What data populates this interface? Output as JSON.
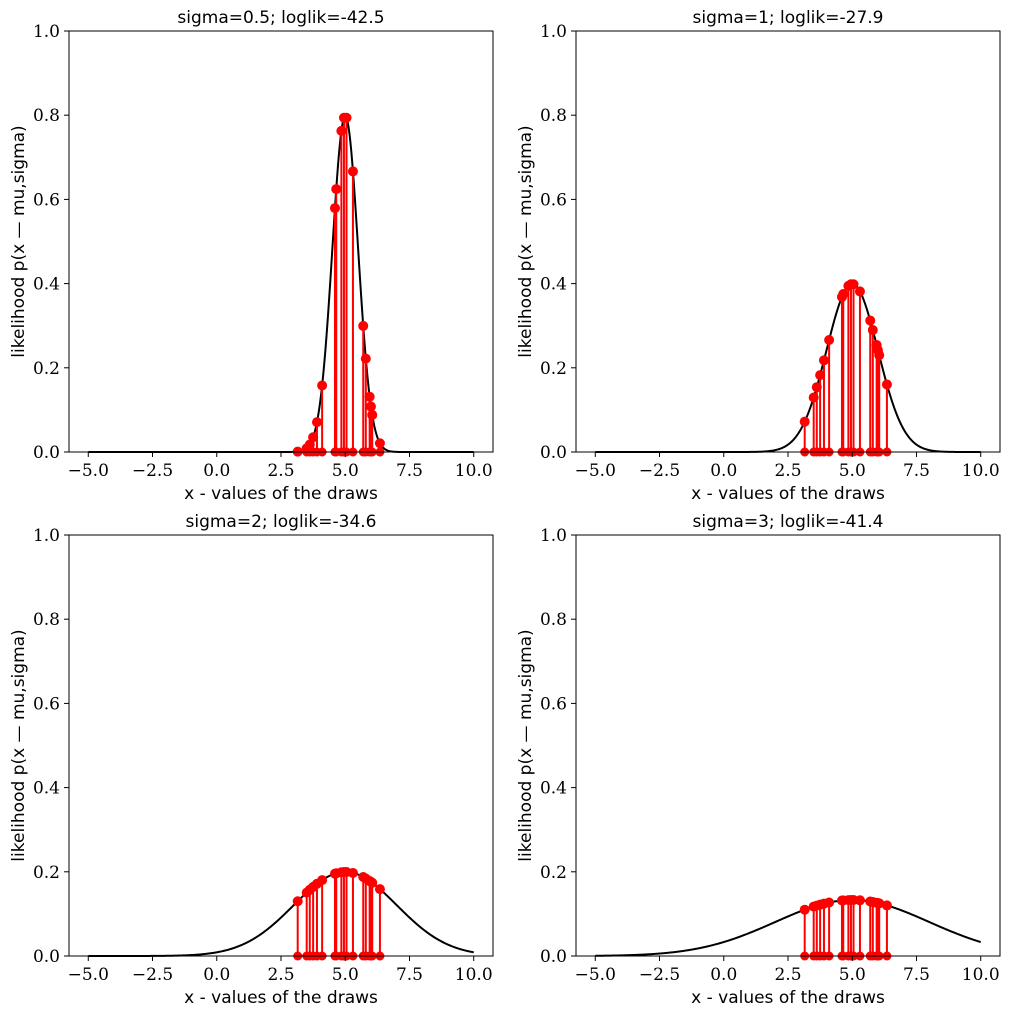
{
  "chart_data": [
    {
      "type": "line",
      "title": "sigma=0.5; loglik=-42.5",
      "xlabel": "x - values of the draws",
      "ylabel": "likelihood p(x — mu,sigma)",
      "xlim": [
        -5.75,
        10.75
      ],
      "ylim": [
        0,
        1
      ],
      "xticks": [
        "−5.0",
        "−2.5",
        "0.0",
        "2.5",
        "5.0",
        "7.5",
        "10.0"
      ],
      "yticks": [
        "0.0",
        "0.2",
        "0.4",
        "0.6",
        "0.8",
        "1.0"
      ],
      "mu": 5.0,
      "sigma": 0.5,
      "curve_range": [
        -5,
        10
      ],
      "curve_color": "#000000",
      "stem_color": "#ff0000",
      "draws": [
        3.15,
        3.5,
        3.62,
        3.75,
        3.9,
        4.1,
        4.6,
        4.65,
        4.85,
        4.95,
        5.05,
        5.3,
        5.7,
        5.8,
        5.95,
        6.0,
        6.05,
        6.35
      ]
    },
    {
      "type": "line",
      "title": "sigma=1; loglik=-27.9",
      "xlabel": "x - values of the draws",
      "ylabel": "likelihood p(x — mu,sigma)",
      "xlim": [
        -5.75,
        10.75
      ],
      "ylim": [
        0,
        1
      ],
      "xticks": [
        "−5.0",
        "−2.5",
        "0.0",
        "2.5",
        "5.0",
        "7.5",
        "10.0"
      ],
      "yticks": [
        "0.0",
        "0.2",
        "0.4",
        "0.6",
        "0.8",
        "1.0"
      ],
      "mu": 5.0,
      "sigma": 1.0,
      "curve_range": [
        -5,
        10
      ],
      "curve_color": "#000000",
      "stem_color": "#ff0000",
      "draws": [
        3.15,
        3.5,
        3.62,
        3.75,
        3.9,
        4.1,
        4.6,
        4.65,
        4.85,
        4.95,
        5.05,
        5.3,
        5.7,
        5.8,
        5.95,
        6.0,
        6.05,
        6.35
      ]
    },
    {
      "type": "line",
      "title": "sigma=2; loglik=-34.6",
      "xlabel": "x - values of the draws",
      "ylabel": "likelihood p(x — mu,sigma)",
      "xlim": [
        -5.75,
        10.75
      ],
      "ylim": [
        0,
        1
      ],
      "xticks": [
        "−5.0",
        "−2.5",
        "0.0",
        "2.5",
        "5.0",
        "7.5",
        "10.0"
      ],
      "yticks": [
        "0.0",
        "0.2",
        "0.4",
        "0.6",
        "0.8",
        "1.0"
      ],
      "mu": 5.0,
      "sigma": 2.0,
      "curve_range": [
        -5,
        10
      ],
      "curve_color": "#000000",
      "stem_color": "#ff0000",
      "draws": [
        3.15,
        3.5,
        3.62,
        3.75,
        3.9,
        4.1,
        4.6,
        4.65,
        4.85,
        4.95,
        5.05,
        5.3,
        5.7,
        5.8,
        5.95,
        6.0,
        6.05,
        6.35
      ]
    },
    {
      "type": "line",
      "title": "sigma=3; loglik=-41.4",
      "xlabel": "x - values of the draws",
      "ylabel": "likelihood p(x — mu,sigma)",
      "xlim": [
        -5.75,
        10.75
      ],
      "ylim": [
        0,
        1
      ],
      "xticks": [
        "−5.0",
        "−2.5",
        "0.0",
        "2.5",
        "5.0",
        "7.5",
        "10.0"
      ],
      "yticks": [
        "0.0",
        "0.2",
        "0.4",
        "0.6",
        "0.8",
        "1.0"
      ],
      "mu": 5.0,
      "sigma": 3.0,
      "curve_range": [
        -5,
        10
      ],
      "curve_color": "#000000",
      "stem_color": "#ff0000",
      "draws": [
        3.15,
        3.5,
        3.62,
        3.75,
        3.9,
        4.1,
        4.6,
        4.65,
        4.85,
        4.95,
        5.05,
        5.3,
        5.7,
        5.8,
        5.95,
        6.0,
        6.05,
        6.35
      ]
    }
  ]
}
